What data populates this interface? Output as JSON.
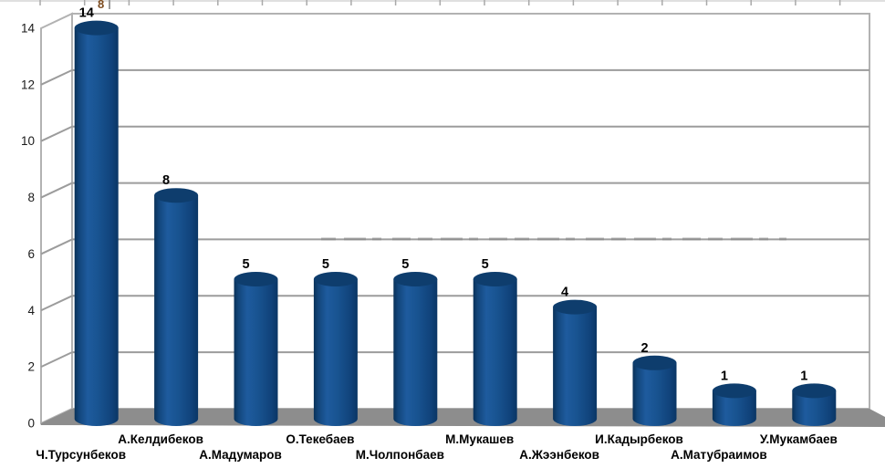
{
  "chart_data": {
    "type": "bar",
    "render_style": "3d-cylinder",
    "title": "",
    "xlabel": "",
    "ylabel": "",
    "categories": [
      "Ч.Турсунбеков",
      "А.Келдибеков",
      "А.Мадумаров",
      "О.Текебаев",
      "М.Чолпонбаев",
      "М.Мукашев",
      "А.Жээнбеков",
      "И.Кадырбеков",
      "А.Матубраимов",
      "У.Мукамбаев"
    ],
    "values": [
      14,
      8,
      5,
      5,
      5,
      5,
      4,
      2,
      1,
      1
    ],
    "data_labels": [
      "14",
      "8",
      "5",
      "5",
      "5",
      "5",
      "4",
      "2",
      "1",
      "1"
    ],
    "yticks": [
      "0",
      "2",
      "4",
      "6",
      "8",
      "10",
      "12",
      "14"
    ],
    "ylim": [
      0,
      14
    ],
    "ytick_step": 2,
    "grid": true,
    "legend": false,
    "data_labels_shown": true
  },
  "colors": {
    "cylinder_edge_dark": "#093158",
    "cylinder_left": "#12457a",
    "cylinder_highlight": "#1e5b9e",
    "cylinder_mid": "#185390",
    "cylinder_right": "#10427a",
    "cylinder_right_edge": "#0a3665",
    "cylinder_top": "#0e3d6d",
    "floor": "#8d8d8d",
    "wall_fill": "#ffffff",
    "wall_border": "#b2b2b2",
    "gridline": "#9c9c9c",
    "watermark_dash": "#838383",
    "value_label": "#000000",
    "axis_label": "#1a1a1a",
    "top_ruler": "#a9a9a9"
  },
  "artifact": {
    "cropped_digit": "8"
  }
}
